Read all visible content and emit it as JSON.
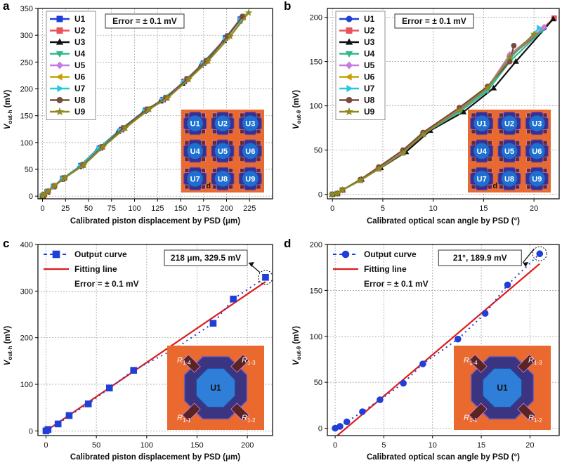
{
  "chart_data": [
    {
      "panel": "a",
      "type": "line",
      "xlabel": "Calibrated piston displacement by PSD (μm)",
      "ylabel_main": "V",
      "ylabel_sub": "out-h",
      "ylabel_unit": " (mV)",
      "xlim": [
        -5,
        250
      ],
      "ylim": [
        -5,
        350
      ],
      "xticks": [
        0,
        25,
        50,
        75,
        100,
        125,
        150,
        175,
        200,
        225
      ],
      "yticks": [
        0,
        50,
        100,
        150,
        200,
        250,
        300,
        350
      ],
      "annotation": "Error = ± 0.1 mV",
      "inset_labels": [
        "U1",
        "U2",
        "U3",
        "U4",
        "U5",
        "U6",
        "U7",
        "U8",
        "U9"
      ],
      "inset_corner": "d",
      "series": [
        {
          "name": "U1",
          "color": "#1f3fd6",
          "marker": "square",
          "x": [
            0,
            1,
            5,
            12,
            22,
            42,
            63,
            86,
            112,
            131,
            154,
            175,
            199,
            215
          ],
          "y": [
            0,
            2,
            8,
            18,
            33,
            57,
            90,
            124,
            160,
            180,
            214,
            248,
            295,
            330
          ]
        },
        {
          "name": "U2",
          "color": "#e8545a",
          "marker": "square",
          "x": [
            0,
            2,
            6,
            13,
            24,
            44,
            65,
            88,
            114,
            134,
            157,
            178,
            201,
            218
          ],
          "y": [
            0,
            3,
            9,
            19,
            34,
            58,
            92,
            127,
            162,
            183,
            218,
            252,
            298,
            333
          ]
        },
        {
          "name": "U3",
          "color": "#111111",
          "marker": "triangle-up",
          "x": [
            0,
            1,
            5,
            11,
            21,
            40,
            60,
            82,
            110,
            128,
            152,
            172,
            197,
            214
          ],
          "y": [
            0,
            2,
            7,
            17,
            31,
            55,
            88,
            120,
            158,
            177,
            210,
            244,
            290,
            326
          ]
        },
        {
          "name": "U4",
          "color": "#2fb889",
          "marker": "triangle-down",
          "x": [
            0,
            2,
            6,
            13,
            24,
            45,
            66,
            89,
            115,
            135,
            158,
            179,
            202,
            219
          ],
          "y": [
            0,
            3,
            9,
            19,
            35,
            60,
            93,
            128,
            163,
            185,
            220,
            254,
            300,
            336
          ]
        },
        {
          "name": "U5",
          "color": "#c67be0",
          "marker": "diamond",
          "x": [
            0,
            1,
            5,
            12,
            23,
            43,
            64,
            87,
            113,
            132,
            155,
            176,
            200,
            216
          ],
          "y": [
            0,
            2,
            8,
            18,
            33,
            57,
            91,
            125,
            161,
            181,
            216,
            250,
            296,
            331
          ]
        },
        {
          "name": "U6",
          "color": "#c9a000",
          "marker": "triangle-left",
          "x": [
            0,
            2,
            6,
            13,
            24,
            44,
            65,
            88,
            114,
            134,
            156,
            177,
            201,
            218
          ],
          "y": [
            0,
            3,
            9,
            19,
            34,
            58,
            92,
            127,
            162,
            183,
            217,
            251,
            297,
            334
          ]
        },
        {
          "name": "U7",
          "color": "#27c9e0",
          "marker": "triangle-right",
          "x": [
            0,
            1,
            5,
            12,
            22,
            41,
            61,
            84,
            111,
            130,
            153,
            174,
            198,
            215
          ],
          "y": [
            0,
            2,
            8,
            18,
            32,
            56,
            89,
            122,
            159,
            179,
            212,
            246,
            292,
            328
          ]
        },
        {
          "name": "U8",
          "color": "#7b4a3d",
          "marker": "circle",
          "x": [
            0,
            2,
            6,
            13,
            24,
            44,
            65,
            88,
            114,
            134,
            157,
            178,
            201,
            217
          ],
          "y": [
            0,
            3,
            9,
            19,
            34,
            58,
            92,
            127,
            162,
            183,
            218,
            252,
            298,
            335
          ]
        },
        {
          "name": "U9",
          "color": "#8f8a1e",
          "marker": "star",
          "x": [
            0,
            2,
            6,
            13,
            24,
            45,
            66,
            90,
            116,
            136,
            159,
            180,
            204,
            224
          ],
          "y": [
            0,
            3,
            9,
            19,
            34,
            58,
            92,
            127,
            162,
            183,
            218,
            252,
            298,
            342
          ]
        }
      ]
    },
    {
      "panel": "b",
      "type": "line",
      "xlabel": "Calibrated optical scan angle by PSD (°)",
      "ylabel_main": "V",
      "ylabel_sub": "out-θ",
      "ylabel_unit": " (mV)",
      "xlim": [
        -0.5,
        22.5
      ],
      "ylim": [
        -5,
        210
      ],
      "xticks": [
        0,
        5,
        10,
        15,
        20
      ],
      "yticks": [
        0,
        50,
        100,
        150,
        200
      ],
      "annotation": "Error = ± 0.1 mV",
      "inset_labels": [
        "U1",
        "U2",
        "U3",
        "U4",
        "U5",
        "U6",
        "U7",
        "U8",
        "U9"
      ],
      "inset_corner": "d",
      "series": [
        {
          "name": "U1",
          "color": "#1f3fd6",
          "marker": "circle",
          "x": [
            0,
            0.5,
            1,
            2.8,
            4.6,
            7,
            9,
            12.6,
            15.4,
            17.6,
            21
          ],
          "y": [
            0,
            1,
            5,
            16,
            29,
            47,
            68,
            95,
            120,
            155,
            188
          ]
        },
        {
          "name": "U2",
          "color": "#e8545a",
          "marker": "square",
          "x": [
            0,
            0.5,
            1,
            2.8,
            4.6,
            7,
            9,
            12.6,
            15.4,
            17.6,
            22
          ],
          "y": [
            0,
            1,
            5,
            16,
            29,
            47,
            68,
            95,
            120,
            155,
            199
          ]
        },
        {
          "name": "U3",
          "color": "#111111",
          "marker": "triangle-up",
          "x": [
            0,
            0.5,
            1,
            2.9,
            4.8,
            7.3,
            9.7,
            13,
            16,
            18.2,
            21.9
          ],
          "y": [
            0,
            1,
            5,
            17,
            30,
            48,
            72,
            93,
            120,
            150,
            198
          ]
        },
        {
          "name": "U4",
          "color": "#2fb889",
          "marker": "triangle-down",
          "x": [
            0,
            0.5,
            1,
            2.8,
            4.6,
            7,
            9,
            12.6,
            15.4,
            17.6,
            20.8
          ],
          "y": [
            0,
            1,
            5,
            16,
            29,
            47,
            68,
            93,
            117,
            150,
            185
          ]
        },
        {
          "name": "U5",
          "color": "#c67be0",
          "marker": "diamond",
          "x": [
            0,
            0.5,
            1,
            2.8,
            4.6,
            7,
            9,
            12.6,
            15.4,
            17.6,
            21
          ],
          "y": [
            0,
            1,
            5,
            16,
            29,
            48,
            69,
            96,
            121,
            158,
            189
          ]
        },
        {
          "name": "U6",
          "color": "#c9a000",
          "marker": "triangle-left",
          "x": [
            0,
            0.5,
            1,
            2.8,
            4.6,
            7,
            9,
            12.6,
            15.4,
            17.6,
            20
          ],
          "y": [
            0,
            1,
            5,
            16,
            29,
            47,
            68,
            95,
            120,
            155,
            181
          ]
        },
        {
          "name": "U7",
          "color": "#27c9e0",
          "marker": "triangle-right",
          "x": [
            0,
            0.5,
            1,
            2.8,
            4.6,
            7,
            9,
            12.6,
            15.4,
            17.6,
            20.5
          ],
          "y": [
            0,
            1,
            5,
            16,
            29,
            47,
            68,
            94,
            119,
            153,
            188
          ]
        },
        {
          "name": "U8",
          "color": "#7b4a3d",
          "marker": "circle",
          "x": [
            0,
            0.5,
            1,
            2.8,
            4.6,
            7,
            9,
            12.6,
            15.4,
            17.6,
            18
          ],
          "y": [
            0,
            1,
            5,
            17,
            31,
            50,
            70,
            98,
            122,
            150,
            168
          ]
        },
        {
          "name": "U9",
          "color": "#8f8a1e",
          "marker": "star",
          "x": [
            0,
            0.5,
            1,
            2.8,
            4.6,
            7,
            9,
            12.6,
            15.4,
            17.6,
            20
          ],
          "y": [
            0,
            1,
            5,
            16,
            29,
            47,
            68,
            95,
            120,
            155,
            181
          ]
        }
      ]
    },
    {
      "panel": "c",
      "type": "scatter",
      "xlabel": "Calibrated piston displacement by PSD (μm)",
      "ylabel_main": "V",
      "ylabel_sub": "out-h",
      "ylabel_unit": " (mV)",
      "xlim": [
        -8,
        225
      ],
      "ylim": [
        -10,
        400
      ],
      "xticks": [
        0,
        50,
        100,
        150,
        200
      ],
      "yticks": [
        0,
        100,
        200,
        300,
        400
      ],
      "legend": [
        "Output curve",
        "Fitting line"
      ],
      "annotation": "Error = ± 0.1 mV",
      "callout": "218 μm, 329.5 mV",
      "inset_center": "U1",
      "inset_resistors": [
        {
          "main": "R",
          "sub": "1-4"
        },
        {
          "main": "R",
          "sub": "1-3"
        },
        {
          "main": "R",
          "sub": "1-1"
        },
        {
          "main": "R",
          "sub": "1-2"
        }
      ],
      "output": {
        "color": "#1f3fd6",
        "marker": "square",
        "x": [
          0,
          2,
          12,
          23,
          42,
          63,
          87,
          127,
          166,
          186,
          218
        ],
        "y": [
          0,
          3,
          15,
          33,
          58,
          92,
          130,
          175,
          231,
          283,
          329.5
        ]
      },
      "fit": {
        "color": "#e01b1b",
        "x": [
          0,
          218
        ],
        "y": [
          0,
          320
        ]
      }
    },
    {
      "panel": "d",
      "type": "scatter",
      "xlabel": "Calibrated optical scan angle by PSD (°)",
      "ylabel_main": "V",
      "ylabel_sub": "out-θ",
      "ylabel_unit": " (mV)",
      "xlim": [
        -0.8,
        23
      ],
      "ylim": [
        -8,
        200
      ],
      "xticks": [
        0,
        5,
        10,
        15,
        20
      ],
      "yticks": [
        0,
        50,
        100,
        150,
        200
      ],
      "legend": [
        "Output curve",
        "Fitting line"
      ],
      "annotation": "Error = ± 0.1 mV",
      "callout": "21°, 189.9 mV",
      "inset_center": "U1",
      "inset_resistors": [
        {
          "main": "R",
          "sub": "1-4"
        },
        {
          "main": "R",
          "sub": "1-3"
        },
        {
          "main": "R",
          "sub": "1-1"
        },
        {
          "main": "R",
          "sub": "1-2"
        }
      ],
      "output": {
        "color": "#1f3fd6",
        "marker": "circle",
        "x": [
          0,
          0.5,
          1.2,
          2.8,
          4.6,
          7,
          9,
          12.6,
          15.4,
          17.7,
          21
        ],
        "y": [
          0,
          2,
          7,
          18,
          31,
          49,
          70,
          97,
          125,
          156,
          189.9
        ]
      },
      "fit": {
        "color": "#e01b1b",
        "x": [
          0,
          21
        ],
        "y": [
          -10,
          179
        ]
      }
    }
  ]
}
